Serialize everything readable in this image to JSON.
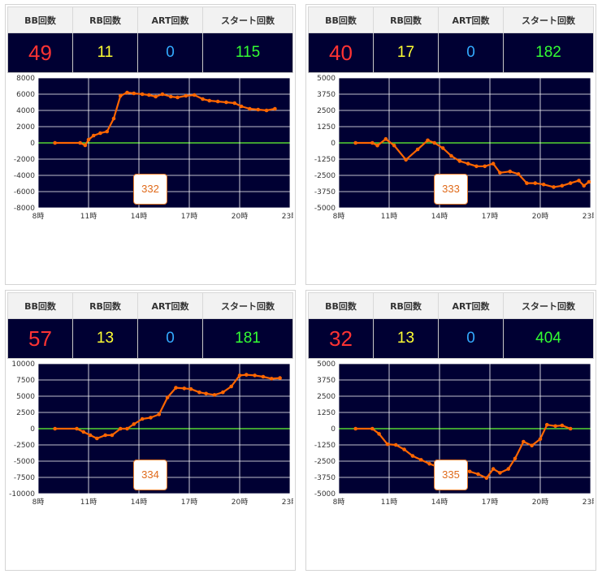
{
  "headers": {
    "bb": "BB回数",
    "rb": "RB回数",
    "art": "ART回数",
    "start": "スタート回数"
  },
  "colors": {
    "bb": "#ff3333",
    "rb": "#ffff33",
    "art": "#33aaff",
    "start": "#33ff33",
    "plot_bg": "#000033",
    "line": "#ff6600",
    "zero_line": "#66ff33",
    "grid": "#ffffff"
  },
  "panels": [
    {
      "stats": {
        "bb": "49",
        "rb": "11",
        "art": "0",
        "start": "115"
      },
      "machine": "332"
    },
    {
      "stats": {
        "bb": "40",
        "rb": "17",
        "art": "0",
        "start": "182"
      },
      "machine": "333"
    },
    {
      "stats": {
        "bb": "57",
        "rb": "13",
        "art": "0",
        "start": "181"
      },
      "machine": "334"
    },
    {
      "stats": {
        "bb": "32",
        "rb": "13",
        "art": "0",
        "start": "404"
      },
      "machine": "335"
    }
  ],
  "chart_data": [
    {
      "type": "line",
      "machine": "332",
      "x_unit": "hour",
      "xlim": [
        8,
        23
      ],
      "xticks": [
        8,
        11,
        14,
        17,
        20,
        23
      ],
      "xtick_labels": [
        "8時",
        "11時",
        "14時",
        "17時",
        "20時",
        "23時"
      ],
      "ylim": [
        -8000,
        8000
      ],
      "yticks": [
        8000,
        6000,
        4000,
        2000,
        0,
        -2000,
        -4000,
        -6000,
        -8000
      ],
      "grid": true,
      "x": [
        9.0,
        10.5,
        10.8,
        11.0,
        11.3,
        11.7,
        12.1,
        12.5,
        12.9,
        13.3,
        13.7,
        14.2,
        14.6,
        15.0,
        15.4,
        15.9,
        16.3,
        16.8,
        17.3,
        17.8,
        18.2,
        18.7,
        19.2,
        19.7,
        20.1,
        20.6,
        21.1,
        21.6,
        22.1
      ],
      "y": [
        0,
        0,
        -300,
        400,
        900,
        1200,
        1400,
        3000,
        5800,
        6200,
        6100,
        6000,
        5900,
        5700,
        6000,
        5700,
        5600,
        5800,
        5900,
        5400,
        5200,
        5100,
        5000,
        4900,
        4500,
        4200,
        4100,
        4000,
        4200
      ]
    },
    {
      "type": "line",
      "machine": "333",
      "x_unit": "hour",
      "xlim": [
        8,
        23
      ],
      "xticks": [
        8,
        11,
        14,
        17,
        20,
        23
      ],
      "xtick_labels": [
        "8時",
        "11時",
        "14時",
        "17時",
        "20時",
        "23時"
      ],
      "ylim": [
        -5000,
        5000
      ],
      "yticks": [
        5000,
        3750,
        2500,
        1250,
        0,
        -1250,
        -2500,
        -3750,
        -5000
      ],
      "grid": true,
      "x": [
        9.0,
        10.0,
        10.3,
        10.8,
        11.3,
        12.0,
        12.7,
        13.3,
        13.7,
        14.2,
        14.7,
        15.2,
        15.7,
        16.2,
        16.7,
        17.2,
        17.6,
        18.2,
        18.7,
        19.2,
        19.7,
        20.2,
        20.8,
        21.3,
        21.8,
        22.3,
        22.6,
        22.9
      ],
      "y": [
        0,
        0,
        -200,
        300,
        -200,
        -1300,
        -500,
        200,
        0,
        -400,
        -1000,
        -1400,
        -1600,
        -1800,
        -1800,
        -1600,
        -2300,
        -2200,
        -2400,
        -3100,
        -3100,
        -3200,
        -3400,
        -3300,
        -3100,
        -2900,
        -3300,
        -3000
      ]
    },
    {
      "type": "line",
      "machine": "334",
      "x_unit": "hour",
      "xlim": [
        8,
        23
      ],
      "xticks": [
        8,
        11,
        14,
        17,
        20,
        23
      ],
      "xtick_labels": [
        "8時",
        "11時",
        "14時",
        "17時",
        "20時",
        "23時"
      ],
      "ylim": [
        -10000,
        10000
      ],
      "yticks": [
        10000,
        7500,
        5000,
        2500,
        0,
        -2500,
        -5000,
        -7500,
        -10000
      ],
      "grid": true,
      "x": [
        9.0,
        10.3,
        10.7,
        11.1,
        11.5,
        12.0,
        12.4,
        12.9,
        13.3,
        13.7,
        14.2,
        14.7,
        15.2,
        15.7,
        16.2,
        16.7,
        17.1,
        17.6,
        18.0,
        18.5,
        19.0,
        19.5,
        20.0,
        20.4,
        20.9,
        21.4,
        21.9,
        22.4
      ],
      "y": [
        0,
        0,
        -500,
        -1000,
        -1500,
        -1000,
        -1000,
        0,
        0,
        700,
        1500,
        1700,
        2200,
        4800,
        6300,
        6200,
        6100,
        5600,
        5400,
        5200,
        5600,
        6500,
        8200,
        8300,
        8200,
        8000,
        7700,
        7800
      ]
    },
    {
      "type": "line",
      "machine": "335",
      "x_unit": "hour",
      "xlim": [
        8,
        23
      ],
      "xticks": [
        8,
        11,
        14,
        17,
        20,
        23
      ],
      "xtick_labels": [
        "8時",
        "11時",
        "14時",
        "17時",
        "20時",
        "23時"
      ],
      "ylim": [
        -5000,
        5000
      ],
      "yticks": [
        5000,
        3750,
        2500,
        1250,
        0,
        -1250,
        -2500,
        -3750,
        -5000
      ],
      "grid": true,
      "x": [
        9.0,
        10.0,
        10.4,
        10.9,
        11.4,
        11.9,
        12.4,
        12.9,
        13.4,
        13.8,
        14.3,
        14.8,
        15.3,
        15.8,
        16.3,
        16.8,
        17.2,
        17.6,
        18.1,
        18.5,
        19.0,
        19.5,
        20.0,
        20.4,
        20.9,
        21.3,
        21.8
      ],
      "y": [
        0,
        0,
        -400,
        -1200,
        -1250,
        -1600,
        -2100,
        -2400,
        -2700,
        -2900,
        -2800,
        -3200,
        -3100,
        -3300,
        -3500,
        -3800,
        -3100,
        -3400,
        -3100,
        -2300,
        -1000,
        -1300,
        -800,
        300,
        200,
        250,
        0
      ]
    }
  ]
}
